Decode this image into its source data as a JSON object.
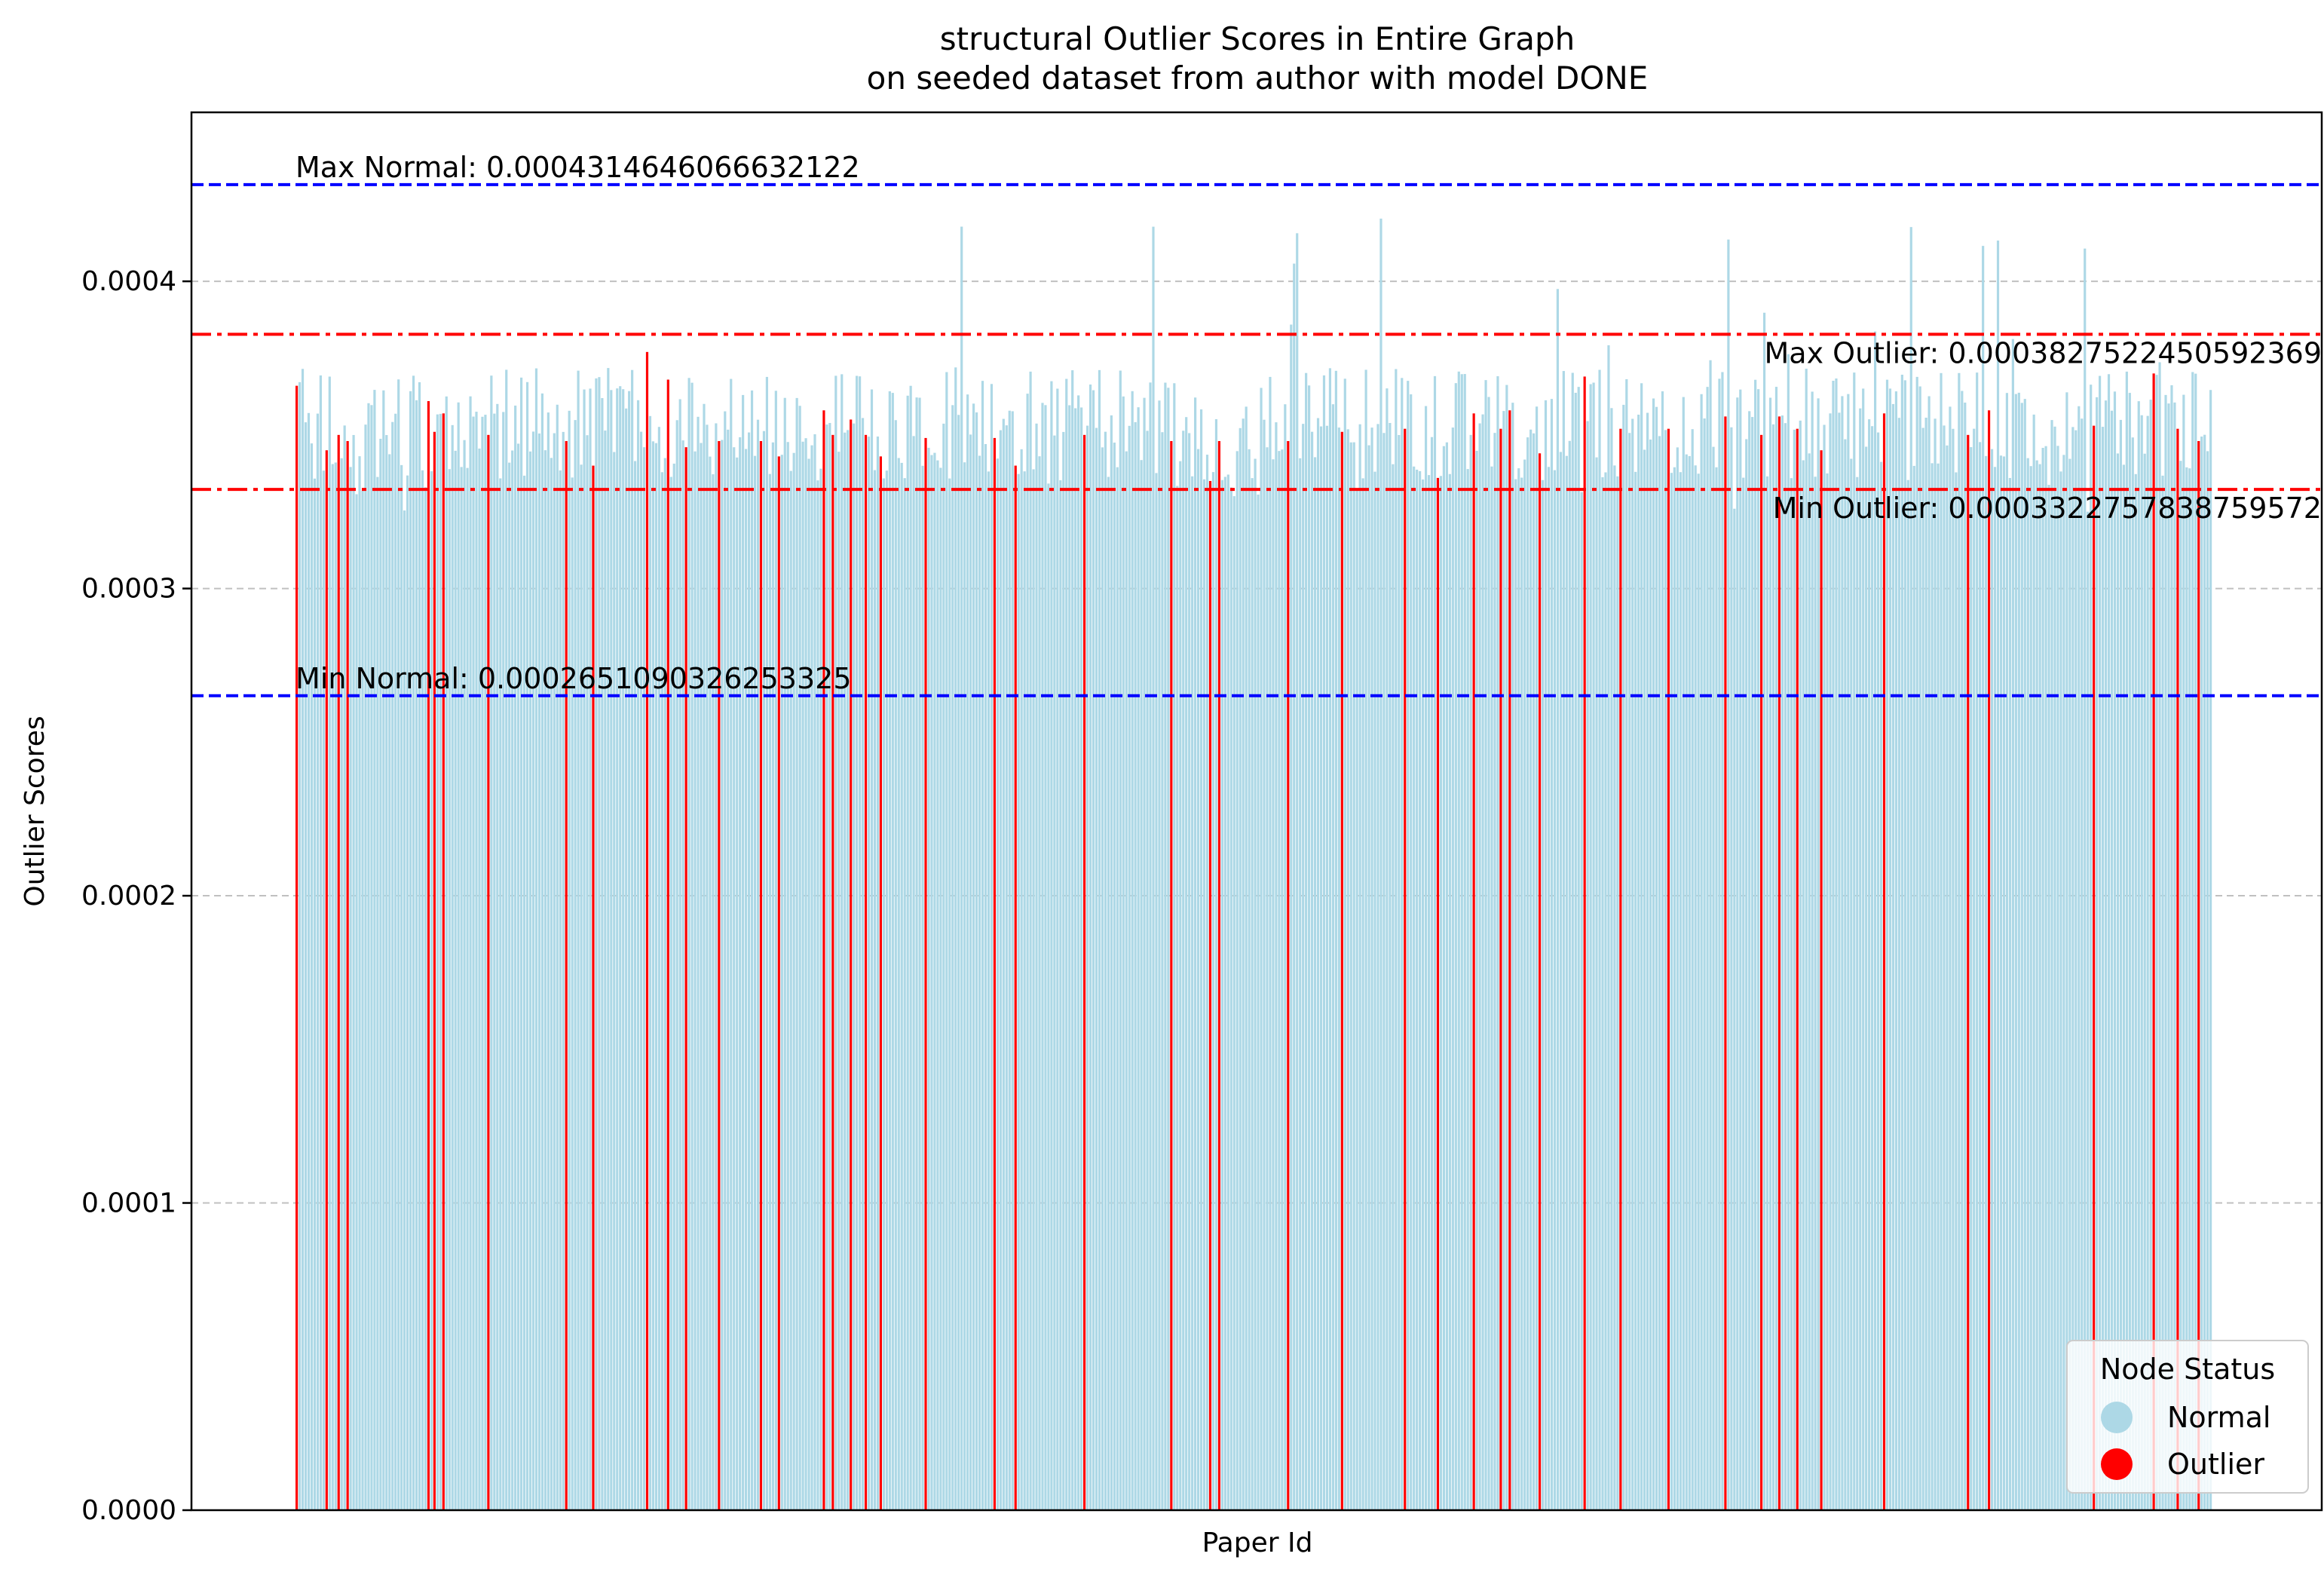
{
  "chart_data": {
    "type": "bar",
    "title": "structural Outlier Scores in Entire Graph",
    "subtitle": "on seeded dataset from author with model DONE",
    "xlabel": "Paper Id",
    "ylabel": "Outlier Scores",
    "ylim": [
      0,
      0.000455
    ],
    "yticks": [
      {
        "value": 0.0,
        "label": "0.0000"
      },
      {
        "value": 0.0001,
        "label": "0.0001"
      },
      {
        "value": 0.0002,
        "label": "0.0002"
      },
      {
        "value": 0.0003,
        "label": "0.0003"
      },
      {
        "value": 0.0004,
        "label": "0.0004"
      }
    ],
    "grid": "y-dashed",
    "bar_count": 640,
    "score_distribution": {
      "typical_min": 0.000335,
      "typical_max": 0.000372
    },
    "reference_lines": [
      {
        "label": "Max Normal: 0.0004314646066632122",
        "value": 0.0004314646066632122,
        "color": "#0000ff",
        "style": "dashed",
        "label_side": "left"
      },
      {
        "label": "Max Outlier: 0.0003827522450592369",
        "value": 0.0003827522450592369,
        "color": "#ff0000",
        "style": "dashdot",
        "label_side": "right"
      },
      {
        "label": "Min Outlier: 0.0003322757838759572",
        "value": 0.0003322757838759572,
        "color": "#ff0000",
        "style": "dashdot",
        "label_side": "right"
      },
      {
        "label": "Min Normal: 0.0002651090326253325",
        "value": 0.0002651090326253325,
        "color": "#0000ff",
        "style": "dashed",
        "label_side": "left"
      }
    ],
    "series": [
      {
        "name": "Normal",
        "color": "#add8e6"
      },
      {
        "name": "Outlier",
        "color": "#ff0000"
      }
    ],
    "outlier_bars": [
      {
        "index": 0,
        "value": 0.000366
      },
      {
        "index": 10,
        "value": 0.000345
      },
      {
        "index": 14,
        "value": 0.00035
      },
      {
        "index": 17,
        "value": 0.000348
      },
      {
        "index": 44,
        "value": 0.000361
      },
      {
        "index": 46,
        "value": 0.000351
      },
      {
        "index": 49,
        "value": 0.000357
      },
      {
        "index": 64,
        "value": 0.00035
      },
      {
        "index": 90,
        "value": 0.000348
      },
      {
        "index": 99,
        "value": 0.00034
      },
      {
        "index": 117,
        "value": 0.000377
      },
      {
        "index": 124,
        "value": 0.000368
      },
      {
        "index": 130,
        "value": 0.000346
      },
      {
        "index": 141,
        "value": 0.000348
      },
      {
        "index": 155,
        "value": 0.000348
      },
      {
        "index": 161,
        "value": 0.000343
      },
      {
        "index": 176,
        "value": 0.000358
      },
      {
        "index": 179,
        "value": 0.00035
      },
      {
        "index": 185,
        "value": 0.000355
      },
      {
        "index": 190,
        "value": 0.00035
      },
      {
        "index": 195,
        "value": 0.000343
      },
      {
        "index": 210,
        "value": 0.000349
      },
      {
        "index": 233,
        "value": 0.000349
      },
      {
        "index": 240,
        "value": 0.00034
      },
      {
        "index": 263,
        "value": 0.00035
      },
      {
        "index": 292,
        "value": 0.000348
      },
      {
        "index": 305,
        "value": 0.000335
      },
      {
        "index": 308,
        "value": 0.000348
      },
      {
        "index": 331,
        "value": 0.000348
      },
      {
        "index": 349,
        "value": 0.000351
      },
      {
        "index": 370,
        "value": 0.000352
      },
      {
        "index": 381,
        "value": 0.000336
      },
      {
        "index": 393,
        "value": 0.000357
      },
      {
        "index": 402,
        "value": 0.000352
      },
      {
        "index": 405,
        "value": 0.000358
      },
      {
        "index": 415,
        "value": 0.000344
      },
      {
        "index": 430,
        "value": 0.000369
      },
      {
        "index": 442,
        "value": 0.000352
      },
      {
        "index": 458,
        "value": 0.000352
      },
      {
        "index": 477,
        "value": 0.000356
      },
      {
        "index": 489,
        "value": 0.00035
      },
      {
        "index": 495,
        "value": 0.000356
      },
      {
        "index": 501,
        "value": 0.000352
      },
      {
        "index": 509,
        "value": 0.000345
      },
      {
        "index": 530,
        "value": 0.000357
      },
      {
        "index": 558,
        "value": 0.00035
      },
      {
        "index": 565,
        "value": 0.000358
      },
      {
        "index": 600,
        "value": 0.000353
      },
      {
        "index": 620,
        "value": 0.00037
      },
      {
        "index": 628,
        "value": 0.000352
      },
      {
        "index": 635,
        "value": 0.000348
      }
    ],
    "legend": {
      "title": "Node Status",
      "position": "lower-right"
    }
  }
}
